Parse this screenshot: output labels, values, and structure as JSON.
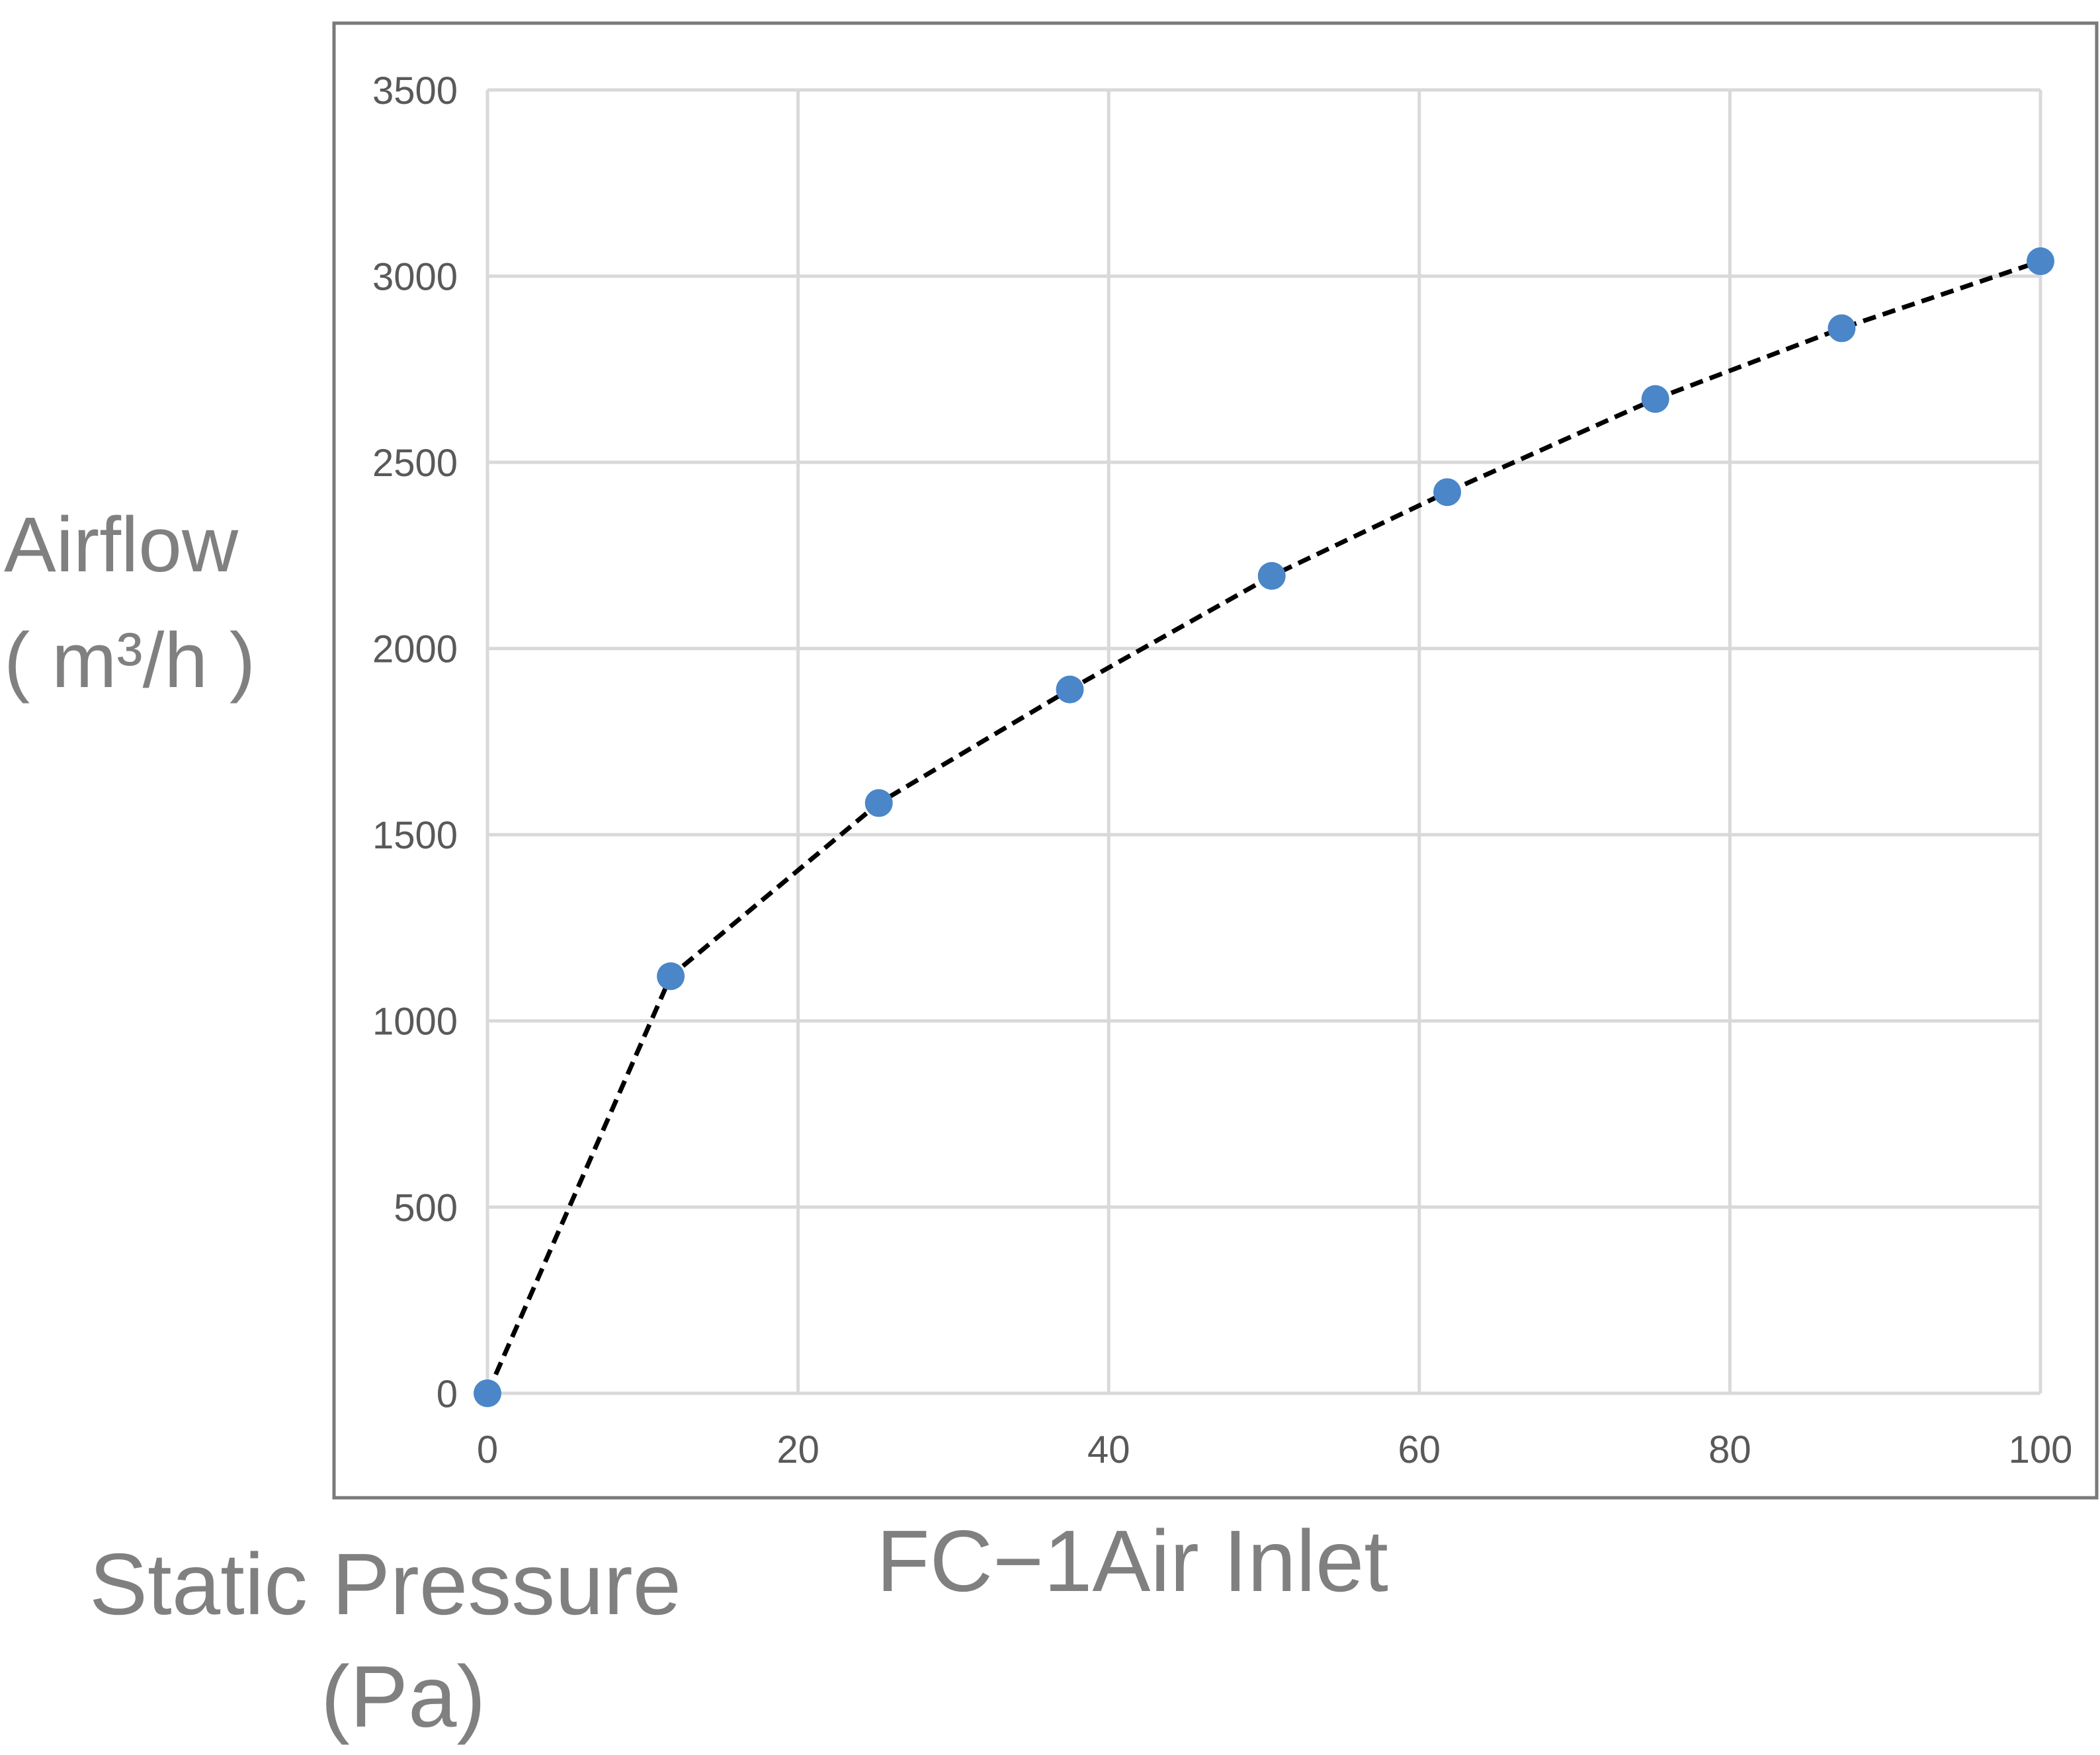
{
  "chart_data": {
    "type": "line",
    "subtitle": "FC−1Air Inlet",
    "ylabel_line1": "Airflow",
    "ylabel_line2": "( m³/h )",
    "xlabel_line1": "Static Pressure",
    "xlabel_line2": "(Pa)",
    "xlim": [
      0,
      100
    ],
    "ylim": [
      0,
      3500
    ],
    "x_ticks": [
      "0",
      "20",
      "40",
      "60",
      "80",
      "100"
    ],
    "y_ticks": [
      "0",
      "500",
      "1000",
      "1500",
      "2000",
      "2500",
      "3000",
      "3500"
    ],
    "grid": true,
    "series": [
      {
        "x": [
          0,
          11.8,
          25.2,
          37.5,
          50.5,
          61.8,
          75.2,
          87.2,
          100
        ],
        "y": [
          0,
          1120,
          1585,
          1890,
          2195,
          2420,
          2670,
          2860,
          3040
        ],
        "marker_color": "#4a86c8",
        "line_color": "#000000",
        "line_style": "dashed"
      }
    ]
  },
  "colors": {
    "grid": "#d9d9d9",
    "frame": "#7a7a7a",
    "tick_label": "#595959",
    "big_label": "#808080"
  }
}
